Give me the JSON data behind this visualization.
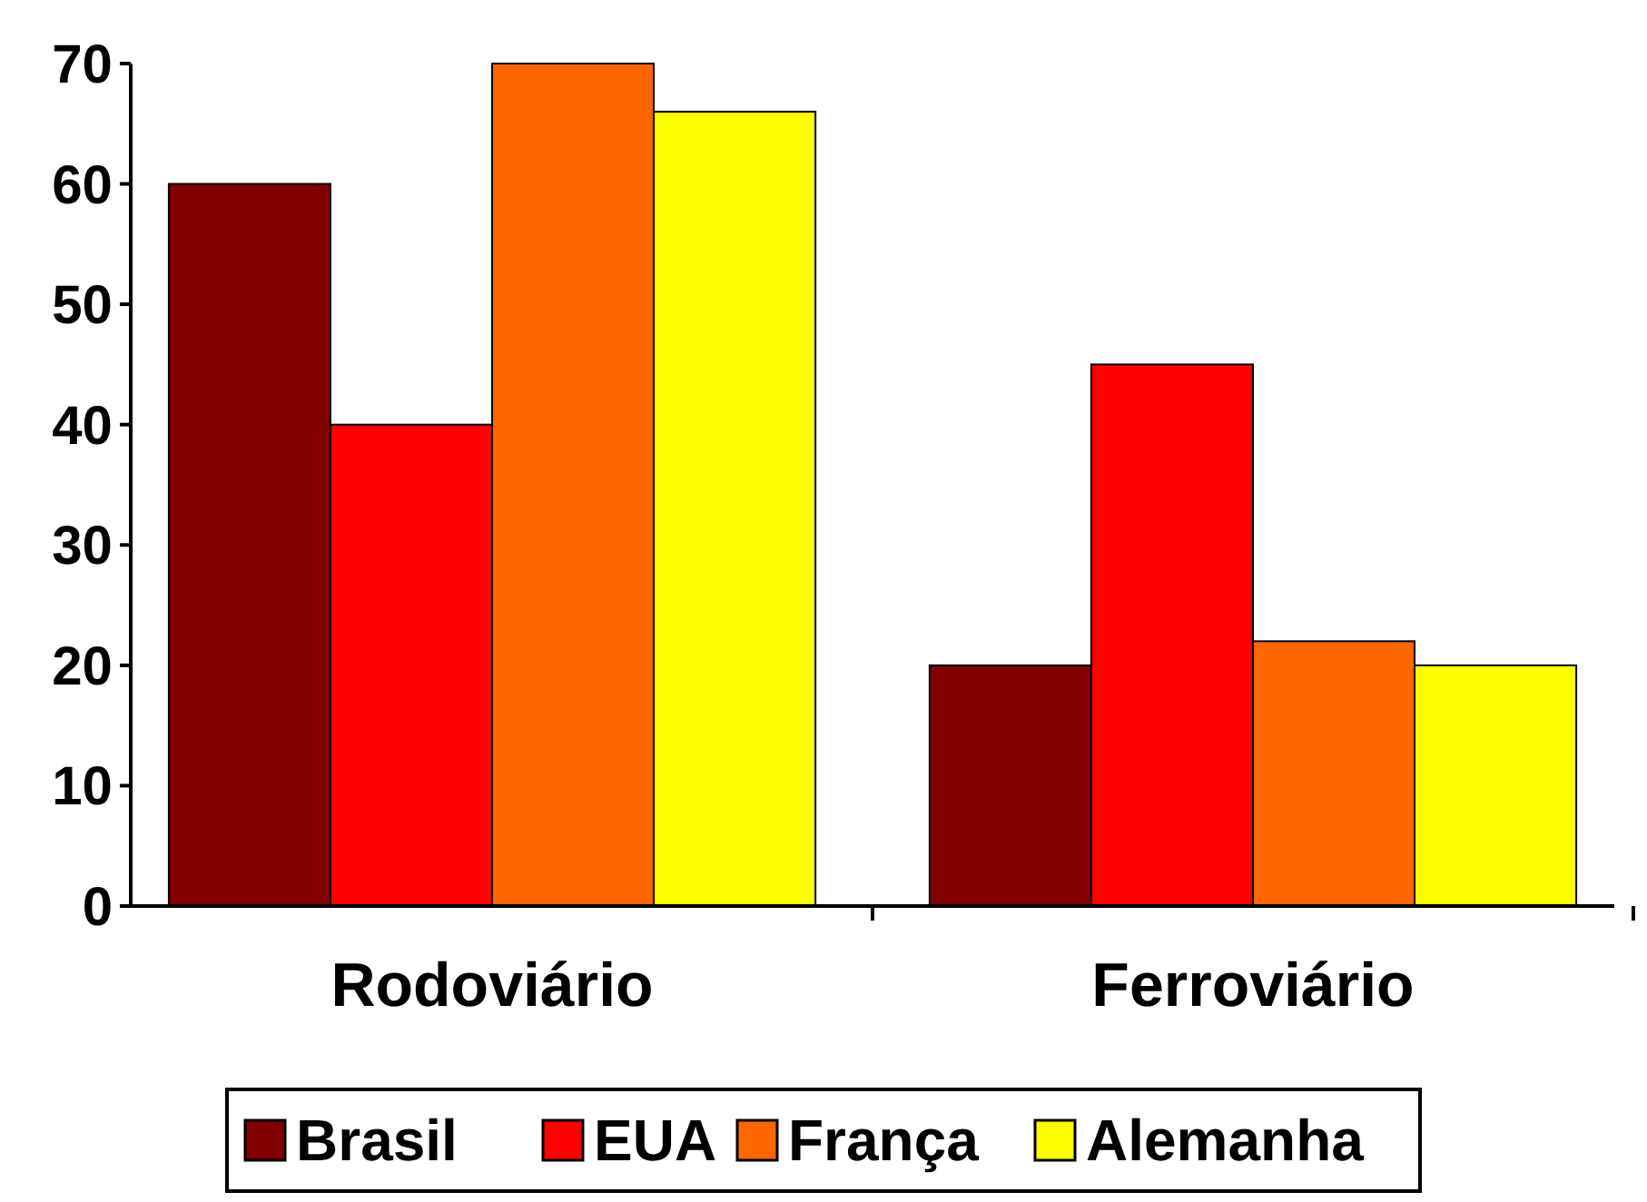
{
  "chart_data": {
    "type": "bar",
    "categories": [
      "Rodoviário",
      "Ferroviário"
    ],
    "series": [
      {
        "name": "Brasil",
        "color": "#800000",
        "values": [
          60,
          20
        ]
      },
      {
        "name": "EUA",
        "color": "#ff0000",
        "values": [
          40,
          45
        ]
      },
      {
        "name": "França",
        "color": "#ff6600",
        "values": [
          70,
          22
        ]
      },
      {
        "name": "Alemanha",
        "color": "#ffff00",
        "values": [
          66,
          20
        ]
      }
    ],
    "ylim": [
      0,
      70
    ],
    "yticks": [
      0,
      10,
      20,
      30,
      40,
      50,
      60,
      70
    ],
    "grid": false,
    "legend": "bottom"
  }
}
